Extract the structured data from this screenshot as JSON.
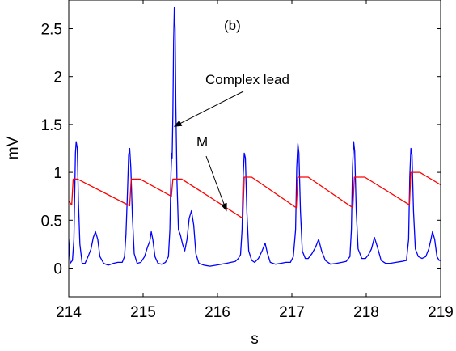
{
  "chart_data": {
    "type": "line",
    "panel_label": "(b)",
    "xlabel": "s",
    "ylabel": "mV",
    "xlim": [
      214,
      219
    ],
    "ylim": [
      -0.3,
      2.8
    ],
    "x_ticks": [
      "214",
      "215",
      "216",
      "217",
      "218",
      "219"
    ],
    "y_ticks": [
      "0",
      "0.5",
      "1",
      "1.5",
      "2",
      "2.5"
    ],
    "grid": false,
    "box": true,
    "series": [
      {
        "name": "Complex lead",
        "color": "#0000ff",
        "points": [
          [
            214.0,
            0.3
          ],
          [
            214.02,
            0.05
          ],
          [
            214.05,
            0.08
          ],
          [
            214.07,
            0.3
          ],
          [
            214.09,
            1.2
          ],
          [
            214.1,
            1.32
          ],
          [
            214.115,
            1.25
          ],
          [
            214.13,
            0.7
          ],
          [
            214.15,
            0.25
          ],
          [
            214.18,
            0.05
          ],
          [
            214.22,
            0.05
          ],
          [
            214.26,
            0.12
          ],
          [
            214.3,
            0.2
          ],
          [
            214.33,
            0.32
          ],
          [
            214.36,
            0.38
          ],
          [
            214.39,
            0.3
          ],
          [
            214.42,
            0.12
          ],
          [
            214.47,
            0.05
          ],
          [
            214.53,
            0.03
          ],
          [
            214.6,
            0.05
          ],
          [
            214.66,
            0.06
          ],
          [
            214.72,
            0.06
          ],
          [
            214.75,
            0.12
          ],
          [
            214.77,
            0.35
          ],
          [
            214.79,
            0.8
          ],
          [
            214.805,
            1.18
          ],
          [
            214.82,
            1.25
          ],
          [
            214.835,
            1.05
          ],
          [
            214.855,
            0.55
          ],
          [
            214.88,
            0.15
          ],
          [
            214.92,
            0.05
          ],
          [
            214.97,
            0.06
          ],
          [
            215.02,
            0.12
          ],
          [
            215.06,
            0.22
          ],
          [
            215.09,
            0.28
          ],
          [
            215.11,
            0.38
          ],
          [
            215.13,
            0.3
          ],
          [
            215.16,
            0.12
          ],
          [
            215.2,
            0.05
          ],
          [
            215.25,
            0.04
          ],
          [
            215.3,
            0.06
          ],
          [
            215.34,
            0.12
          ],
          [
            215.36,
            0.4
          ],
          [
            215.375,
            1.0
          ],
          [
            215.385,
            1.2
          ],
          [
            215.39,
            1.15
          ],
          [
            215.4,
            1.6
          ],
          [
            215.41,
            2.35
          ],
          [
            215.42,
            2.72
          ],
          [
            215.43,
            2.5
          ],
          [
            215.44,
            1.7
          ],
          [
            215.455,
            0.9
          ],
          [
            215.475,
            0.4
          ],
          [
            215.5,
            0.35
          ],
          [
            215.53,
            0.25
          ],
          [
            215.56,
            0.18
          ],
          [
            215.59,
            0.3
          ],
          [
            215.62,
            0.52
          ],
          [
            215.65,
            0.6
          ],
          [
            215.68,
            0.45
          ],
          [
            215.71,
            0.15
          ],
          [
            215.75,
            0.05
          ],
          [
            215.82,
            0.03
          ],
          [
            215.9,
            0.02
          ],
          [
            215.98,
            0.03
          ],
          [
            216.05,
            0.04
          ],
          [
            216.12,
            0.05
          ],
          [
            216.18,
            0.06
          ],
          [
            216.24,
            0.07
          ],
          [
            216.28,
            0.1
          ],
          [
            216.31,
            0.14
          ],
          [
            216.33,
            0.4
          ],
          [
            216.345,
            0.95
          ],
          [
            216.36,
            1.2
          ],
          [
            216.375,
            1.15
          ],
          [
            216.395,
            0.6
          ],
          [
            216.42,
            0.18
          ],
          [
            216.46,
            0.08
          ],
          [
            216.5,
            0.06
          ],
          [
            216.55,
            0.1
          ],
          [
            216.6,
            0.18
          ],
          [
            216.64,
            0.26
          ],
          [
            216.67,
            0.16
          ],
          [
            216.71,
            0.06
          ],
          [
            216.78,
            0.04
          ],
          [
            216.85,
            0.05
          ],
          [
            216.92,
            0.06
          ],
          [
            216.98,
            0.06
          ],
          [
            217.02,
            0.12
          ],
          [
            217.05,
            0.4
          ],
          [
            217.065,
            1.05
          ],
          [
            217.08,
            1.3
          ],
          [
            217.095,
            1.2
          ],
          [
            217.115,
            0.6
          ],
          [
            217.14,
            0.18
          ],
          [
            217.18,
            0.1
          ],
          [
            217.22,
            0.1
          ],
          [
            217.27,
            0.15
          ],
          [
            217.32,
            0.22
          ],
          [
            217.36,
            0.3
          ],
          [
            217.4,
            0.18
          ],
          [
            217.45,
            0.08
          ],
          [
            217.52,
            0.04
          ],
          [
            217.6,
            0.05
          ],
          [
            217.67,
            0.06
          ],
          [
            217.73,
            0.07
          ],
          [
            217.78,
            0.12
          ],
          [
            217.8,
            0.4
          ],
          [
            217.815,
            1.05
          ],
          [
            217.83,
            1.32
          ],
          [
            217.845,
            1.22
          ],
          [
            217.865,
            0.6
          ],
          [
            217.89,
            0.2
          ],
          [
            217.94,
            0.1
          ],
          [
            217.99,
            0.1
          ],
          [
            218.03,
            0.14
          ],
          [
            218.07,
            0.2
          ],
          [
            218.11,
            0.32
          ],
          [
            218.15,
            0.22
          ],
          [
            218.2,
            0.08
          ],
          [
            218.26,
            0.05
          ],
          [
            218.32,
            0.05
          ],
          [
            218.4,
            0.06
          ],
          [
            218.48,
            0.07
          ],
          [
            218.54,
            0.08
          ],
          [
            218.57,
            0.3
          ],
          [
            218.585,
            0.95
          ],
          [
            218.6,
            1.25
          ],
          [
            218.615,
            1.18
          ],
          [
            218.635,
            0.6
          ],
          [
            218.66,
            0.2
          ],
          [
            218.7,
            0.12
          ],
          [
            218.75,
            0.1
          ],
          [
            218.8,
            0.12
          ],
          [
            218.84,
            0.2
          ],
          [
            218.87,
            0.3
          ],
          [
            218.89,
            0.38
          ],
          [
            218.92,
            0.3
          ],
          [
            218.95,
            0.12
          ],
          [
            218.98,
            0.08
          ],
          [
            219.0,
            0.08
          ]
        ]
      },
      {
        "name": "M",
        "color": "#ff0000",
        "points": [
          [
            214.0,
            0.7
          ],
          [
            214.04,
            0.66
          ],
          [
            214.06,
            0.93
          ],
          [
            214.12,
            0.93
          ],
          [
            214.82,
            0.65
          ],
          [
            214.84,
            0.93
          ],
          [
            214.96,
            0.93
          ],
          [
            215.38,
            0.75
          ],
          [
            215.4,
            0.93
          ],
          [
            215.52,
            0.93
          ],
          [
            216.34,
            0.52
          ],
          [
            216.36,
            0.95
          ],
          [
            216.46,
            0.95
          ],
          [
            217.06,
            0.63
          ],
          [
            217.08,
            0.95
          ],
          [
            217.22,
            0.95
          ],
          [
            217.82,
            0.63
          ],
          [
            217.84,
            0.95
          ],
          [
            217.98,
            0.95
          ],
          [
            218.58,
            0.66
          ],
          [
            218.6,
            1.0
          ],
          [
            218.72,
            1.0
          ],
          [
            219.0,
            0.87
          ]
        ]
      }
    ],
    "annotations": [
      {
        "text": "Complex lead",
        "arrow_to": [
          215.42,
          1.48
        ]
      },
      {
        "text": "M",
        "arrow_to": [
          216.12,
          0.6
        ]
      }
    ]
  }
}
